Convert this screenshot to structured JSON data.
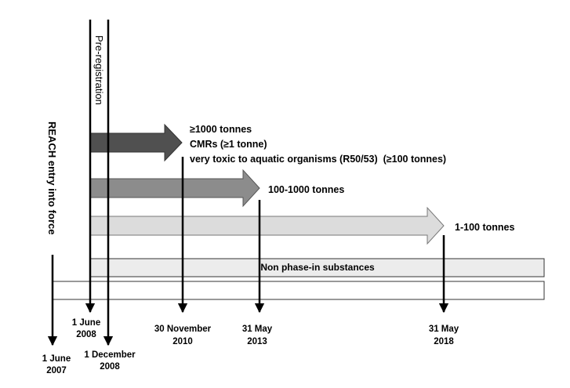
{
  "annotations": {
    "reach_entry": "REACH entry into force",
    "pre_registration": "Pre-registration"
  },
  "deadlines": [
    {
      "label": [
        "≥1000 tonnes",
        "CMRs (≥1 tonne)",
        "very toxic to aquatic organisms (R50/53)  (≥100 tonnes)"
      ]
    },
    {
      "label": [
        "100-1000 tonnes"
      ]
    },
    {
      "label": [
        "1-100 tonnes"
      ]
    }
  ],
  "bars": {
    "non_phase_in": "Non phase-in substances"
  },
  "dates": [
    [
      "1 June",
      "2007"
    ],
    [
      "1 June",
      "2008"
    ],
    [
      "1 December",
      "2008"
    ],
    [
      "30 November",
      "2010"
    ],
    [
      "31 May",
      "2013"
    ],
    [
      "31 May",
      "2018"
    ]
  ]
}
